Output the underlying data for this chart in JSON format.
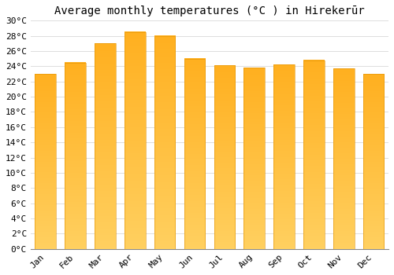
{
  "title": "Average monthly temperatures (°C ) in Hirekerūr",
  "months": [
    "Jan",
    "Feb",
    "Mar",
    "Apr",
    "May",
    "Jun",
    "Jul",
    "Aug",
    "Sep",
    "Oct",
    "Nov",
    "Dec"
  ],
  "values": [
    23.0,
    24.5,
    27.0,
    28.5,
    28.0,
    25.0,
    24.1,
    23.8,
    24.2,
    24.8,
    23.7,
    23.0
  ],
  "bar_color": "#FFA020",
  "bar_color_bottom": "#FFB830",
  "background_color": "#FFFFFF",
  "grid_color": "#dddddd",
  "ylim": [
    0,
    30
  ],
  "ytick_step": 2,
  "title_fontsize": 10,
  "tick_fontsize": 8,
  "font_family": "monospace"
}
